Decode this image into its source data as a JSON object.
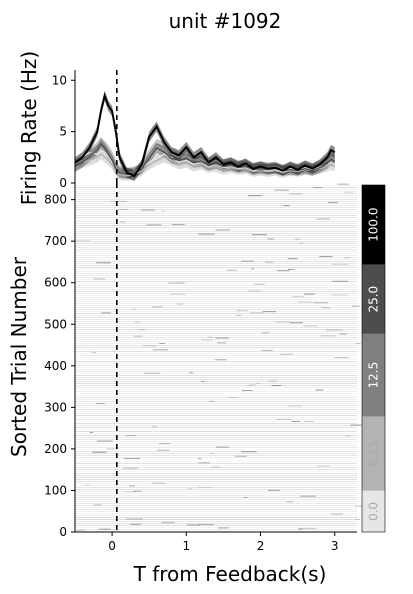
{
  "chart_data": [
    {
      "type": "line",
      "panel": "firing-rate",
      "title": "unit #1092",
      "xlabel": "",
      "ylabel": "Firing Rate (Hz)",
      "xlim": [
        -0.5,
        3.3
      ],
      "ylim": [
        0,
        11
      ],
      "yticks": [
        0,
        5,
        10
      ],
      "event_marker_x": 0,
      "series_colors": [
        "#e6e6e6",
        "#b3b3b3",
        "#808080",
        "#4d4d4d",
        "#000000"
      ],
      "x": [
        -0.5,
        -0.4,
        -0.3,
        -0.2,
        -0.15,
        -0.1,
        -0.05,
        0.0,
        0.05,
        0.1,
        0.2,
        0.3,
        0.4,
        0.5,
        0.6,
        0.7,
        0.8,
        0.9,
        1.0,
        1.1,
        1.2,
        1.3,
        1.4,
        1.5,
        1.6,
        1.7,
        1.8,
        1.9,
        2.0,
        2.1,
        2.2,
        2.3,
        2.4,
        2.5,
        2.6,
        2.7,
        2.8,
        2.9,
        2.95,
        3.0
      ],
      "series": [
        {
          "values": [
            2.0,
            2.5,
            3.0,
            2.8,
            3.2,
            3.0,
            2.5,
            2.0,
            1.5,
            1.0,
            0.9,
            1.0,
            1.5,
            2.0,
            2.5,
            2.8,
            2.5,
            2.0,
            2.2,
            1.8,
            2.0,
            1.6,
            1.8,
            1.5,
            1.6,
            1.4,
            1.5,
            1.2,
            1.4,
            1.2,
            1.3,
            1.1,
            1.4,
            1.2,
            1.5,
            1.3,
            1.6,
            1.8,
            2.0,
            1.8
          ]
        },
        {
          "values": [
            1.5,
            2.0,
            2.2,
            2.5,
            2.8,
            2.5,
            2.2,
            1.8,
            1.2,
            0.8,
            0.7,
            0.8,
            1.2,
            1.8,
            2.2,
            2.5,
            2.2,
            1.8,
            2.0,
            1.6,
            1.8,
            1.5,
            1.6,
            1.3,
            1.5,
            1.3,
            1.4,
            1.1,
            1.2,
            1.1,
            1.2,
            1.0,
            1.2,
            1.1,
            1.3,
            1.2,
            1.4,
            1.6,
            1.8,
            1.6
          ]
        },
        {
          "values": [
            1.8,
            2.2,
            2.8,
            3.5,
            4.0,
            3.6,
            3.2,
            2.6,
            1.8,
            1.2,
            1.0,
            1.1,
            1.6,
            2.8,
            3.8,
            3.5,
            2.8,
            2.5,
            2.8,
            2.2,
            2.4,
            1.9,
            2.2,
            1.8,
            2.0,
            1.7,
            1.8,
            1.5,
            1.6,
            1.5,
            1.6,
            1.3,
            1.5,
            1.4,
            1.6,
            1.4,
            1.7,
            2.2,
            2.6,
            2.4
          ]
        },
        {
          "values": [
            1.6,
            2.0,
            2.6,
            3.2,
            3.8,
            3.4,
            2.8,
            2.2,
            1.4,
            1.0,
            0.9,
            1.0,
            1.4,
            2.4,
            3.4,
            3.0,
            2.4,
            2.2,
            2.4,
            2.0,
            2.1,
            1.7,
            1.9,
            1.6,
            1.7,
            1.5,
            1.6,
            1.3,
            1.4,
            1.3,
            1.4,
            1.2,
            1.3,
            1.2,
            1.4,
            1.2,
            1.5,
            1.9,
            2.3,
            2.1
          ]
        },
        {
          "values": [
            2.0,
            2.5,
            3.5,
            5.0,
            7.0,
            8.5,
            7.5,
            7.0,
            5.0,
            2.5,
            1.0,
            0.7,
            1.8,
            4.5,
            5.5,
            4.0,
            3.0,
            2.7,
            3.5,
            2.5,
            3.0,
            2.0,
            2.5,
            1.8,
            2.0,
            1.6,
            1.9,
            1.4,
            1.6,
            1.4,
            1.5,
            1.2,
            1.6,
            1.3,
            1.7,
            1.4,
            1.8,
            2.5,
            3.2,
            3.0
          ]
        }
      ]
    },
    {
      "type": "heatmap",
      "panel": "raster",
      "xlabel": "T from Feedback(s)",
      "ylabel": "Sorted Trial Number",
      "xlim": [
        -0.5,
        3.3
      ],
      "ylim": [
        0,
        840
      ],
      "xticks": [
        0,
        1,
        2,
        3
      ],
      "yticks": [
        0,
        100,
        200,
        300,
        400,
        500,
        600,
        700,
        800
      ],
      "event_marker_x": 0
    },
    {
      "type": "colorbar",
      "panel": "colorbar",
      "tick_labels": [
        "0.0",
        "6.25",
        "12.5",
        "25.0",
        "100.0"
      ],
      "colors": [
        "#e6e6e6",
        "#b3b3b3",
        "#808080",
        "#4d4d4d",
        "#000000"
      ]
    }
  ]
}
